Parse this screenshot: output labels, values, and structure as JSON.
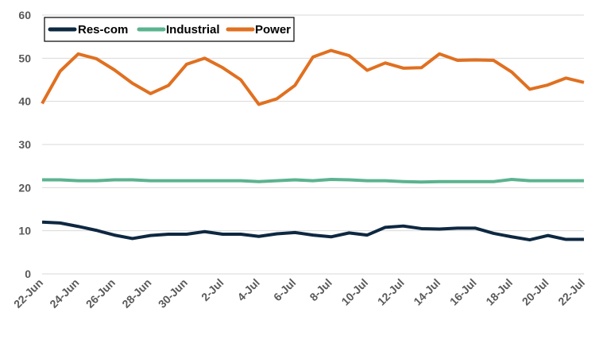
{
  "chart_data": {
    "type": "line",
    "title": "",
    "xlabel": "",
    "ylabel": "",
    "ylim": [
      0,
      60
    ],
    "yticks": [
      0,
      10,
      20,
      30,
      40,
      50,
      60
    ],
    "grid": true,
    "legend_position": "top-left",
    "x": [
      "22-Jun",
      "23-Jun",
      "24-Jun",
      "25-Jun",
      "26-Jun",
      "27-Jun",
      "28-Jun",
      "29-Jun",
      "30-Jun",
      "1-Jul",
      "2-Jul",
      "3-Jul",
      "4-Jul",
      "5-Jul",
      "6-Jul",
      "7-Jul",
      "8-Jul",
      "9-Jul",
      "10-Jul",
      "11-Jul",
      "12-Jul",
      "13-Jul",
      "14-Jul",
      "15-Jul",
      "16-Jul",
      "17-Jul",
      "18-Jul",
      "19-Jul",
      "20-Jul",
      "21-Jul",
      "22-Jul"
    ],
    "x_tick_labels": [
      "22-Jun",
      "24-Jun",
      "26-Jun",
      "28-Jun",
      "30-Jun",
      "2-Jul",
      "4-Jul",
      "6-Jul",
      "8-Jul",
      "10-Jul",
      "12-Jul",
      "14-Jul",
      "16-Jul",
      "18-Jul",
      "20-Jul",
      "22-Jul"
    ],
    "series": [
      {
        "name": "Res-com",
        "color": "#0e2841",
        "values": [
          12.0,
          11.8,
          11.0,
          10.1,
          9.0,
          8.2,
          8.9,
          9.2,
          9.2,
          9.8,
          9.2,
          9.2,
          8.7,
          9.3,
          9.6,
          9.0,
          8.6,
          9.5,
          9.0,
          10.8,
          11.1,
          10.5,
          10.4,
          10.6,
          10.6,
          9.4,
          8.6,
          7.9,
          8.9,
          8.0,
          8.0
        ]
      },
      {
        "name": "Industrial",
        "color": "#5bb38f",
        "values": [
          21.8,
          21.8,
          21.6,
          21.6,
          21.8,
          21.8,
          21.6,
          21.6,
          21.6,
          21.6,
          21.6,
          21.6,
          21.4,
          21.6,
          21.8,
          21.6,
          21.9,
          21.8,
          21.6,
          21.6,
          21.4,
          21.3,
          21.4,
          21.4,
          21.4,
          21.4,
          21.9,
          21.6,
          21.6,
          21.6,
          21.6
        ]
      },
      {
        "name": "Power",
        "color": "#e07020",
        "values": [
          39.5,
          47.0,
          51.0,
          49.9,
          47.3,
          44.2,
          41.8,
          43.7,
          48.6,
          50.0,
          47.8,
          45.0,
          39.3,
          40.6,
          43.7,
          50.3,
          51.8,
          50.6,
          47.2,
          48.9,
          47.7,
          47.8,
          51.0,
          49.5,
          49.6,
          49.5,
          46.8,
          42.8,
          43.8,
          45.4,
          44.4
        ]
      }
    ]
  }
}
